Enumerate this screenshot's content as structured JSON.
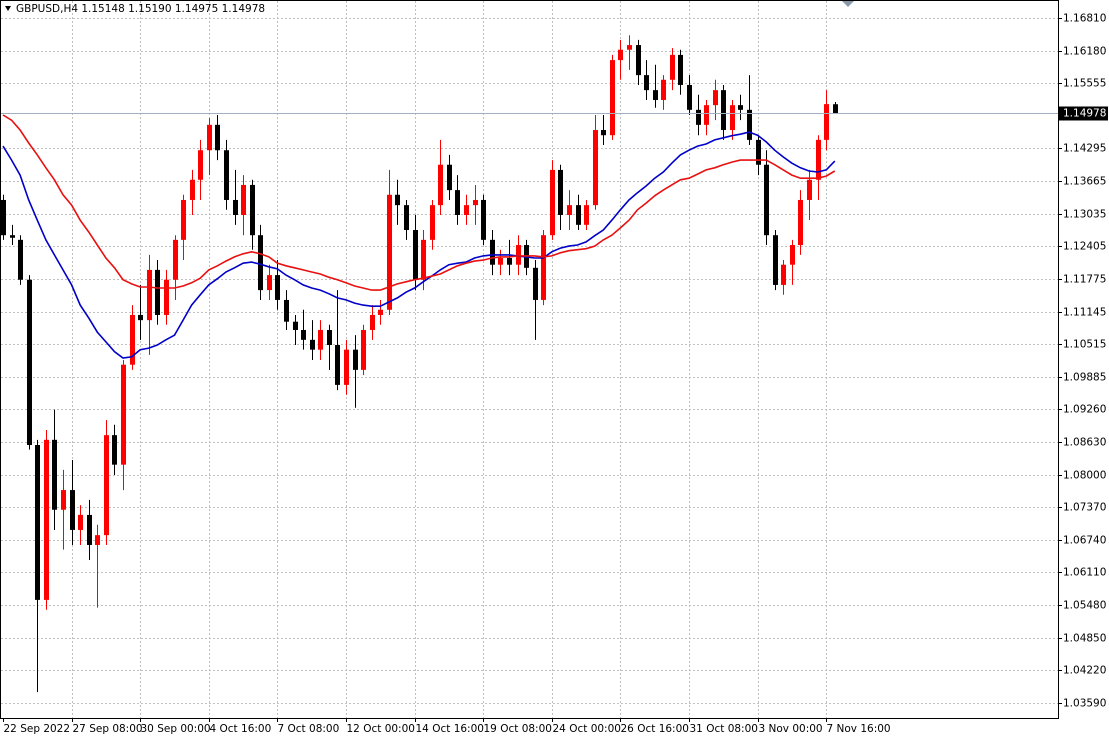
{
  "chart_data": {
    "type": "candlestick",
    "header": "GBPUSD,H4  1.15148 1.15190 1.14975 1.14978",
    "last_price": 1.14978,
    "up_color": "#ff0000",
    "down_color": "#000000",
    "grid": true,
    "categories": [
      "22 Sep 2022",
      null,
      null,
      null,
      null,
      null,
      null,
      null,
      "27 Sep 08:00",
      null,
      null,
      null,
      null,
      null,
      null,
      null,
      "30 Sep 00:00",
      null,
      null,
      null,
      null,
      null,
      null,
      null,
      "4 Oct 16:00",
      null,
      null,
      null,
      null,
      null,
      null,
      null,
      "7 Oct 08:00",
      null,
      null,
      null,
      null,
      null,
      null,
      null,
      "12 Oct 00:00",
      null,
      null,
      null,
      null,
      null,
      null,
      null,
      "14 Oct 16:00",
      null,
      null,
      null,
      null,
      null,
      null,
      null,
      "19 Oct 08:00",
      null,
      null,
      null,
      null,
      null,
      null,
      null,
      "24 Oct 00:00",
      null,
      null,
      null,
      null,
      null,
      null,
      null,
      "26 Oct 16:00",
      null,
      null,
      null,
      null,
      null,
      null,
      null,
      "31 Oct 08:00",
      null,
      null,
      null,
      null,
      null,
      null,
      null,
      "3 Nov 00:00",
      null,
      null,
      null,
      null,
      null,
      null,
      null,
      "7 Nov 16:00",
      null
    ],
    "open": [
      1.133,
      1.1262,
      1.1253,
      1.1176,
      1.0857,
      1.0558,
      1.0867,
      1.0732,
      1.077,
      1.0693,
      1.0722,
      1.0664,
      1.0683,
      1.0876,
      1.0819,
      1.1012,
      1.1108,
      1.1098,
      1.1195,
      1.1108,
      1.1176,
      1.1253,
      1.133,
      1.1369,
      1.1426,
      1.1475,
      1.1426,
      1.133,
      1.1301,
      1.1359,
      1.1262,
      1.1156,
      1.1185,
      1.1137,
      1.1095,
      1.1079,
      1.106,
      1.1041,
      1.1079,
      1.105,
      1.0973,
      1.1041,
      1.1002,
      1.1079,
      1.1108,
      1.1118,
      1.134,
      1.132,
      1.1272,
      1.1176,
      1.1253,
      1.132,
      1.1398,
      1.1349,
      1.1301,
      1.132,
      1.133,
      1.1253,
      1.1205,
      1.1218,
      1.1205,
      1.1243,
      1.1199,
      1.1137,
      1.1262,
      1.1388,
      1.1301,
      1.132,
      1.1282,
      1.132,
      1.1465,
      1.1455,
      1.16,
      1.162,
      1.1629,
      1.1571,
      1.1542,
      1.1523,
      1.1562,
      1.161,
      1.1552,
      1.1504,
      1.1475,
      1.1513,
      1.1542,
      1.1465,
      1.1513,
      1.1504,
      1.1446,
      1.1398,
      1.1262,
      1.1166,
      1.1205,
      1.1243,
      1.133,
      1.1369,
      1.1446,
      1.15148
    ],
    "high": [
      1.134,
      1.1282,
      1.1262,
      1.1185,
      1.0867,
      1.0886,
      1.0925,
      1.0809,
      1.0828,
      1.0741,
      1.0751,
      1.0703,
      1.0905,
      1.0896,
      1.1021,
      1.1127,
      1.1166,
      1.1224,
      1.1214,
      1.1195,
      1.1262,
      1.134,
      1.1388,
      1.1446,
      1.1488,
      1.1494,
      1.1446,
      1.1388,
      1.1378,
      1.1369,
      1.1282,
      1.1205,
      1.1214,
      1.1156,
      1.1108,
      1.1118,
      1.1098,
      1.1098,
      1.1089,
      1.1156,
      1.106,
      1.1069,
      1.1089,
      1.1127,
      1.1137,
      1.1388,
      1.1369,
      1.133,
      1.1301,
      1.1272,
      1.133,
      1.1446,
      1.1417,
      1.1378,
      1.134,
      1.1359,
      1.134,
      1.1272,
      1.1234,
      1.1253,
      1.1262,
      1.1253,
      1.1214,
      1.1272,
      1.1407,
      1.1398,
      1.1349,
      1.134,
      1.133,
      1.1494,
      1.1494,
      1.161,
      1.1639,
      1.1648,
      1.1639,
      1.16,
      1.1591,
      1.1571,
      1.1623,
      1.162,
      1.1571,
      1.1533,
      1.1523,
      1.1562,
      1.1552,
      1.1523,
      1.1533,
      1.1571,
      1.1455,
      1.1426,
      1.1272,
      1.1214,
      1.1253,
      1.1349,
      1.1388,
      1.1455,
      1.1542,
      1.1519
    ],
    "low": [
      1.1253,
      1.1243,
      1.1166,
      1.0848,
      1.038,
      1.0539,
      1.0693,
      1.0655,
      1.0664,
      1.0664,
      1.0635,
      1.0543,
      1.0664,
      1.0799,
      1.077,
      1.1002,
      1.106,
      1.1031,
      1.1089,
      1.1089,
      1.1137,
      1.1214,
      1.1301,
      1.133,
      1.1378,
      1.1407,
      1.1311,
      1.1282,
      1.1262,
      1.1234,
      1.1137,
      1.1137,
      1.1118,
      1.1079,
      1.105,
      1.1041,
      1.1021,
      1.1021,
      1.1002,
      1.0963,
      1.0954,
      1.0929,
      1.0992,
      1.106,
      1.1089,
      1.1108,
      1.1282,
      1.1253,
      1.1156,
      1.1156,
      1.1234,
      1.1301,
      1.133,
      1.1282,
      1.1282,
      1.1282,
      1.1243,
      1.1185,
      1.1185,
      1.1185,
      1.1185,
      1.1185,
      1.106,
      1.1127,
      1.1253,
      1.1272,
      1.1272,
      1.1272,
      1.1272,
      1.1311,
      1.1436,
      1.1446,
      1.1562,
      1.1581,
      1.1552,
      1.1523,
      1.1508,
      1.1504,
      1.1542,
      1.1533,
      1.1494,
      1.1455,
      1.1455,
      1.1484,
      1.1446,
      1.1446,
      1.1484,
      1.1436,
      1.1378,
      1.1243,
      1.1156,
      1.1147,
      1.1166,
      1.1224,
      1.1291,
      1.133,
      1.1426,
      1.14975
    ],
    "close": [
      1.1262,
      1.1257,
      1.1176,
      1.0857,
      1.0558,
      1.0867,
      1.0732,
      1.077,
      1.0693,
      1.0722,
      1.0664,
      1.0683,
      1.0876,
      1.0819,
      1.1012,
      1.1108,
      1.1098,
      1.1195,
      1.1108,
      1.1176,
      1.1253,
      1.133,
      1.1369,
      1.1426,
      1.1475,
      1.1426,
      1.133,
      1.1301,
      1.1359,
      1.1262,
      1.1156,
      1.1185,
      1.1137,
      1.1095,
      1.1079,
      1.106,
      1.1041,
      1.1079,
      1.105,
      1.0973,
      1.1041,
      1.1002,
      1.1079,
      1.1108,
      1.1118,
      1.134,
      1.132,
      1.1272,
      1.1176,
      1.1253,
      1.132,
      1.1398,
      1.1349,
      1.1301,
      1.132,
      1.133,
      1.1253,
      1.1205,
      1.1218,
      1.1205,
      1.1243,
      1.1199,
      1.1137,
      1.1262,
      1.1388,
      1.1301,
      1.132,
      1.1282,
      1.132,
      1.1465,
      1.1455,
      1.16,
      1.162,
      1.1629,
      1.1571,
      1.1542,
      1.1523,
      1.1562,
      1.161,
      1.1552,
      1.1504,
      1.1475,
      1.1513,
      1.1542,
      1.1465,
      1.1513,
      1.1504,
      1.1446,
      1.1398,
      1.1262,
      1.1166,
      1.1205,
      1.1243,
      1.133,
      1.1369,
      1.1446,
      1.1515,
      1.14978
    ],
    "lines": [
      {
        "color": "#0000c8",
        "values": [
          1.1434,
          1.1407,
          1.1378,
          1.133,
          1.1291,
          1.1253,
          1.1224,
          1.1195,
          1.1166,
          1.1127,
          1.1102,
          1.1075,
          1.1056,
          1.1037,
          1.1025,
          1.1027,
          1.1041,
          1.1044,
          1.105,
          1.106,
          1.1069,
          1.1098,
          1.1127,
          1.1147,
          1.1166,
          1.1178,
          1.1191,
          1.1199,
          1.1208,
          1.121,
          1.1206,
          1.1201,
          1.1197,
          1.1185,
          1.1176,
          1.1166,
          1.116,
          1.1156,
          1.1149,
          1.1141,
          1.1137,
          1.1131,
          1.1127,
          1.1125,
          1.1125,
          1.1133,
          1.1141,
          1.1152,
          1.116,
          1.1172,
          1.1183,
          1.1195,
          1.1205,
          1.1208,
          1.121,
          1.1218,
          1.1222,
          1.1224,
          1.1224,
          1.1224,
          1.1222,
          1.122,
          1.1218,
          1.1218,
          1.123,
          1.1237,
          1.1241,
          1.1243,
          1.1249,
          1.1261,
          1.1272,
          1.1291,
          1.1311,
          1.133,
          1.1344,
          1.1357,
          1.1372,
          1.1384,
          1.1401,
          1.1417,
          1.1426,
          1.1434,
          1.1438,
          1.1446,
          1.145,
          1.1454,
          1.1457,
          1.1461,
          1.1455,
          1.1442,
          1.1426,
          1.1413,
          1.1401,
          1.1392,
          1.1386,
          1.1384,
          1.1388,
          1.1405
        ]
      },
      {
        "color": "#e81010",
        "values": [
          1.1494,
          1.1484,
          1.1465,
          1.144,
          1.1417,
          1.1392,
          1.1369,
          1.134,
          1.132,
          1.1291,
          1.1268,
          1.1243,
          1.1218,
          1.1199,
          1.1176,
          1.1168,
          1.1162,
          1.1162,
          1.116,
          1.116,
          1.116,
          1.1164,
          1.117,
          1.1179,
          1.1195,
          1.1203,
          1.1212,
          1.122,
          1.1226,
          1.123,
          1.1226,
          1.122,
          1.1208,
          1.1203,
          1.1199,
          1.1195,
          1.1191,
          1.1187,
          1.1181,
          1.1176,
          1.117,
          1.1164,
          1.116,
          1.1156,
          1.1156,
          1.1162,
          1.1168,
          1.1172,
          1.1176,
          1.1179,
          1.1183,
          1.1187,
          1.1195,
          1.1203,
          1.1208,
          1.1212,
          1.1214,
          1.1218,
          1.122,
          1.122,
          1.1222,
          1.1222,
          1.1222,
          1.122,
          1.1222,
          1.1228,
          1.1232,
          1.1234,
          1.1236,
          1.1241,
          1.1253,
          1.1262,
          1.1276,
          1.1291,
          1.1311,
          1.1324,
          1.1338,
          1.1349,
          1.1359,
          1.1369,
          1.1372,
          1.138,
          1.1388,
          1.1392,
          1.1398,
          1.1403,
          1.1407,
          1.1407,
          1.1407,
          1.1407,
          1.1398,
          1.1388,
          1.1378,
          1.1372,
          1.1372,
          1.1372,
          1.1376,
          1.1386
        ]
      }
    ],
    "ylim": [
      1.033,
      1.1716
    ],
    "yticks": [
      {
        "value": 1.1681,
        "label": "1.16810"
      },
      {
        "value": 1.1618,
        "label": "1.16180"
      },
      1.15555,
      1.14295,
      1.13665,
      1.13035,
      1.12405,
      1.11775,
      1.11145,
      1.10515,
      1.09885,
      {
        "value": 1.0926,
        "label": "1.09260"
      },
      {
        "value": 1.0863,
        "label": "1.08630"
      },
      {
        "value": 1.08,
        "label": "1.08000"
      },
      {
        "value": 1.0737,
        "label": "1.07370"
      },
      {
        "value": 1.0674,
        "label": "1.06740"
      },
      {
        "value": 1.0611,
        "label": "1.06110"
      },
      {
        "value": 1.0548,
        "label": "1.05480"
      },
      {
        "value": 1.0485,
        "label": "1.04850"
      },
      {
        "value": 1.0422,
        "label": "1.04220"
      },
      {
        "value": 1.0359,
        "label": "1.03590"
      }
    ]
  }
}
